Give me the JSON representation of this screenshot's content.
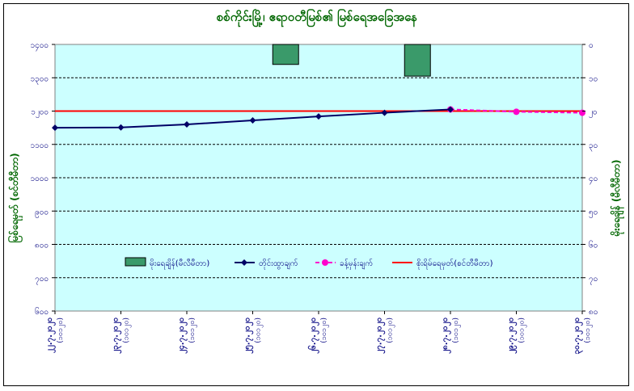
{
  "chart_data": {
    "type": "line",
    "title": "စစ်ကိုင်းမြို့၊ ဧရာဝတီမြစ်၏ မြစ်ရေအခြေအနေ",
    "ylabel_left": "မြစ်ရေမှတ် (စင်တီမီတာ)",
    "ylabel_right": "မိုးရေချိန် (မီလီမီတာ)",
    "x": [
      "၂၂.၇.၂၀၂၀",
      "၂၃.၇.၂၀၂၀",
      "၂၄.၇.၂၀၂၀",
      "၂၅.၇.၂၀၂၀",
      "၂၆.၇.၂၀၂၀",
      "၂၇.၇.၂၀၂၀",
      "၂၈.၇.၂၀၂၀",
      "၂၉.၇.၂၀၂၀",
      "၃၀.၇.၂၀၂၀"
    ],
    "x_sublabel": "(၁၀၁၂၀)",
    "ylim_left": [
      600,
      1400
    ],
    "yticks_left": [
      "၆၀၀",
      "၇၀၀",
      "၈၀၀",
      "၉၀၀",
      "၁၀၀၀",
      "၁၁၀၀",
      "၁၂၀၀",
      "၁၃၀၀",
      "၁၄၀၀"
    ],
    "ylim_right": [
      80,
      0
    ],
    "yticks_right": [
      "၀",
      "၁၀",
      "၂၀",
      "၃၀",
      "၄၀",
      "၅၀",
      "၆၀",
      "၇၀",
      "၈၀"
    ],
    "grid": true,
    "legend_position": "center",
    "series": [
      {
        "name": "မိုးရေချိန်(မီလီမီတာ)",
        "kind": "bar",
        "axis": "right",
        "color": "#3a9a6a",
        "values": [
          0,
          0,
          0,
          0,
          6,
          0,
          9.5,
          0,
          0
        ]
      },
      {
        "name": "တိုင်းထွာချက်",
        "kind": "line",
        "axis": "left",
        "color": "#000066",
        "values": [
          1150,
          1151,
          1160,
          1172,
          1184,
          1195,
          1205,
          null,
          null
        ]
      },
      {
        "name": "ခန့်မှန်းချက်",
        "kind": "dashed-line",
        "axis": "left",
        "color": "#ff00cc",
        "values": [
          null,
          null,
          null,
          null,
          null,
          null,
          1205,
          1198,
          1195
        ]
      },
      {
        "name": "စိုးရိမ်ရေမှတ်(စင်တီမီတာ)",
        "kind": "hline",
        "axis": "left",
        "color": "#ff0000",
        "value": 1200
      }
    ]
  }
}
